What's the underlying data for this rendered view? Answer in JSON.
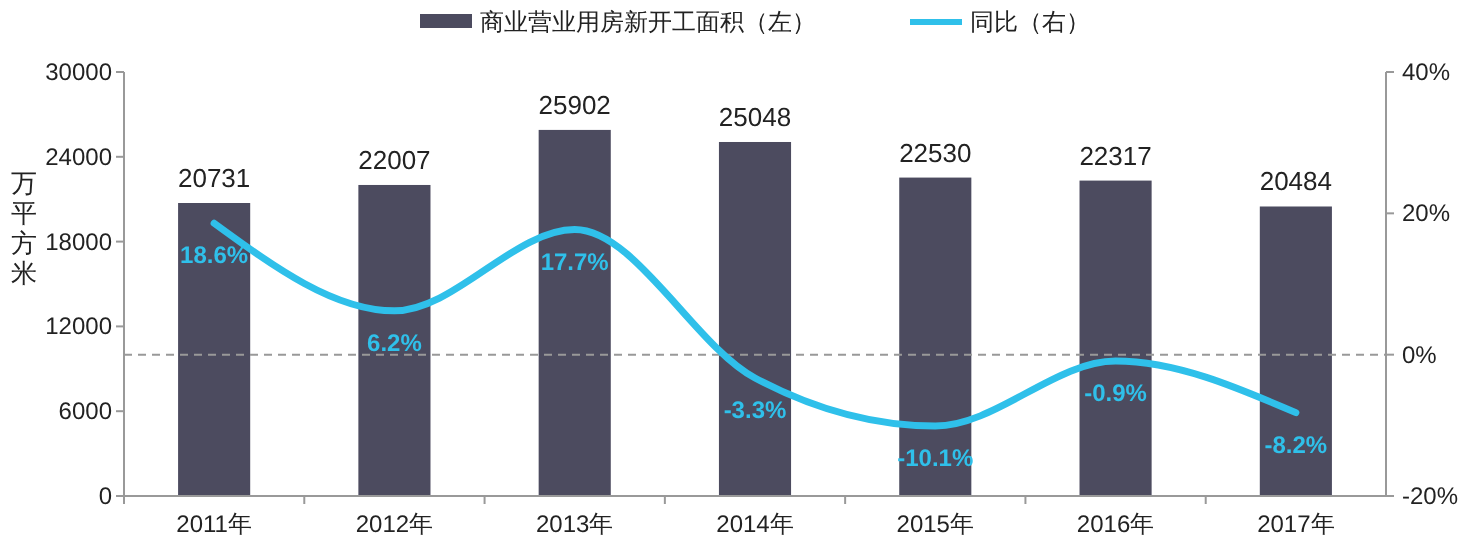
{
  "chart_data": {
    "type": "bar",
    "categories": [
      "2011年",
      "2012年",
      "2013年",
      "2014年",
      "2015年",
      "2016年",
      "2017年"
    ],
    "series": [
      {
        "name": "商业营业用房新开工面积（左）",
        "color": "#4c4b5f",
        "values": [
          20731,
          22007,
          25902,
          25048,
          22530,
          22317,
          20484
        ]
      },
      {
        "name": "同比（右）",
        "type": "line",
        "axis": "y2",
        "color": "#2fc0ea",
        "values": [
          18.6,
          6.2,
          17.7,
          -3.3,
          -10.1,
          -0.9,
          -8.2
        ],
        "value_labels": [
          "18.6%",
          "6.2%",
          "17.7%",
          "-3.3%",
          "-10.1%",
          "-0.9%",
          "-8.2%"
        ]
      }
    ],
    "ylabel": "万平方米",
    "ylim": [
      0,
      30000
    ],
    "yticks": [
      0,
      6000,
      12000,
      18000,
      24000,
      30000
    ],
    "y2lim": [
      -20,
      40
    ],
    "y2ticks": [
      {
        "value": -20,
        "label": "-20%"
      },
      {
        "value": 0,
        "label": "0%"
      },
      {
        "value": 20,
        "label": "20%"
      },
      {
        "value": 40,
        "label": "40%"
      }
    ],
    "ref_lines": [
      {
        "axis": "y2",
        "value": 0,
        "color": "#999999",
        "line_style": "dashed"
      }
    ],
    "data_labels": true,
    "legend": "top",
    "marker": "none",
    "line_style": "solid"
  }
}
